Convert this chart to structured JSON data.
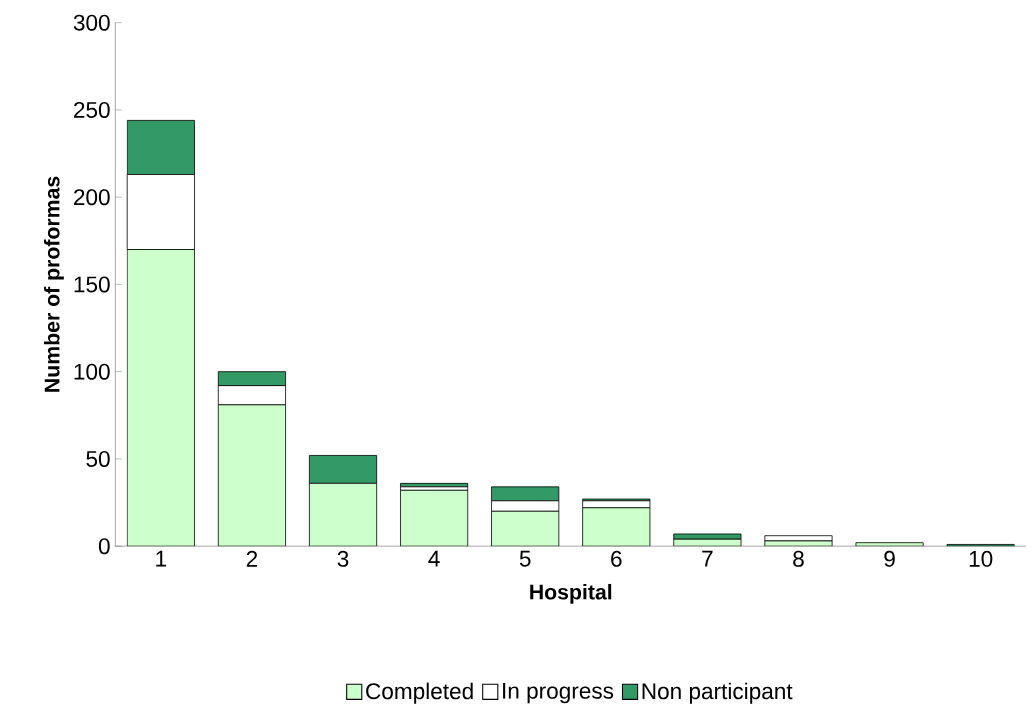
{
  "chart_data": {
    "type": "bar",
    "stacked": true,
    "xlabel": "Hospital",
    "ylabel": "Number of proformas",
    "categories": [
      "1",
      "2",
      "3",
      "4",
      "5",
      "6",
      "7",
      "8",
      "9",
      "10"
    ],
    "series": [
      {
        "name": "Completed",
        "color": "#ccffcc",
        "values": [
          170,
          81,
          36,
          32,
          20,
          22,
          4,
          3,
          2,
          0
        ]
      },
      {
        "name": "In progress",
        "color": "#ffffff",
        "values": [
          43,
          11,
          0,
          2,
          6,
          4,
          0,
          3,
          0,
          0
        ]
      },
      {
        "name": "Non participant",
        "color": "#339966",
        "values": [
          31,
          8,
          16,
          2,
          8,
          1,
          3,
          0,
          0,
          1
        ]
      }
    ],
    "ylim": [
      0,
      300
    ],
    "yticks": [
      0,
      50,
      100,
      150,
      200,
      250,
      300
    ],
    "grid": false,
    "legend": "bottom"
  }
}
